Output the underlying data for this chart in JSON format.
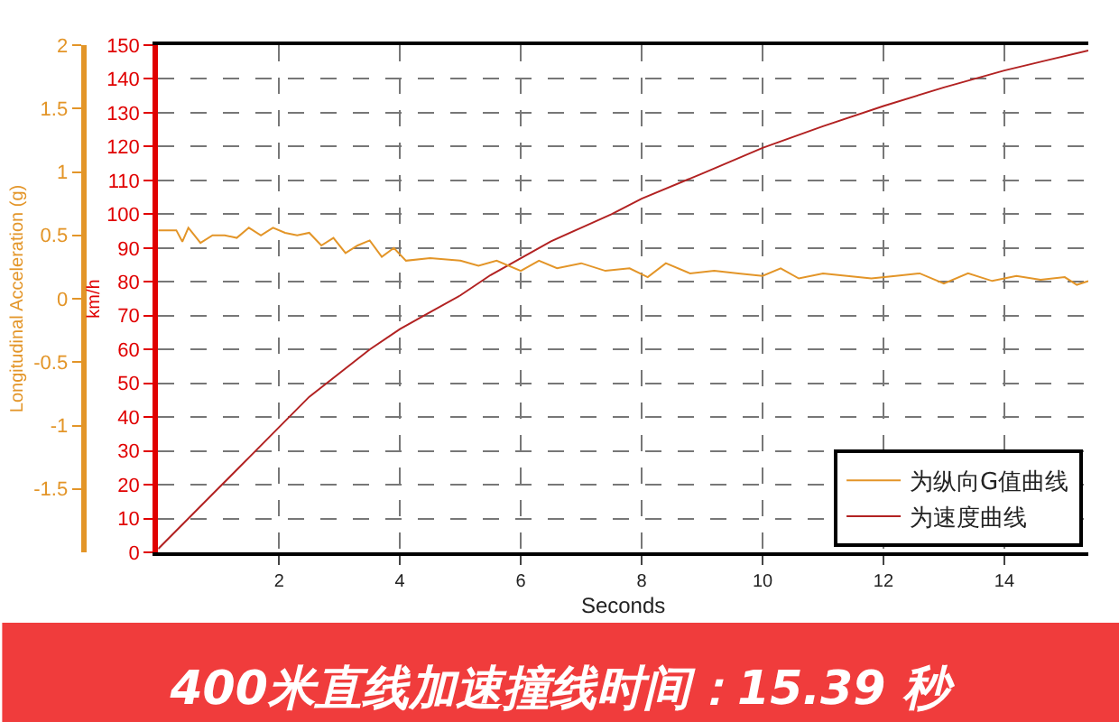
{
  "chart_data": {
    "type": "line",
    "title": "400米直线加速撞线时间：15.39 秒",
    "xlabel": "Seconds",
    "ylabel": "km/h",
    "y2label": "Longitudinal Acceleration (g)",
    "xlim": [
      0,
      15.39
    ],
    "xticks": [
      2,
      4,
      6,
      8,
      10,
      12,
      14
    ],
    "ylim": [
      0,
      150
    ],
    "yticks": [
      0,
      10,
      20,
      30,
      40,
      50,
      60,
      70,
      80,
      90,
      100,
      110,
      120,
      130,
      140,
      150
    ],
    "y2lim": [
      -2,
      2
    ],
    "y2ticks": [
      -1.5,
      -1,
      -0.5,
      0,
      0.5,
      1,
      1.5,
      2
    ],
    "grid": true,
    "legend": "bottom right",
    "line_style": "solid",
    "series": [
      {
        "name": "为纵向G值曲线",
        "color": "#e39528",
        "axis": "y2",
        "x": [
          0,
          0.3,
          0.4,
          0.5,
          0.7,
          0.9,
          1.1,
          1.3,
          1.5,
          1.7,
          1.9,
          2.1,
          2.3,
          2.5,
          2.7,
          2.9,
          3.1,
          3.3,
          3.5,
          3.7,
          3.9,
          4.1,
          4.5,
          5.0,
          5.3,
          5.6,
          6.0,
          6.3,
          6.6,
          7.0,
          7.4,
          7.8,
          8.1,
          8.4,
          8.8,
          9.2,
          9.6,
          10.0,
          10.3,
          10.6,
          11.0,
          11.4,
          11.8,
          12.2,
          12.6,
          13.0,
          13.4,
          13.8,
          14.2,
          14.6,
          15.0,
          15.2,
          15.39
        ],
        "values": [
          0.54,
          0.54,
          0.45,
          0.56,
          0.44,
          0.5,
          0.5,
          0.48,
          0.56,
          0.5,
          0.56,
          0.52,
          0.5,
          0.52,
          0.42,
          0.48,
          0.36,
          0.42,
          0.46,
          0.33,
          0.4,
          0.3,
          0.32,
          0.3,
          0.26,
          0.3,
          0.22,
          0.3,
          0.24,
          0.28,
          0.22,
          0.24,
          0.17,
          0.28,
          0.2,
          0.22,
          0.2,
          0.18,
          0.24,
          0.16,
          0.2,
          0.18,
          0.16,
          0.18,
          0.2,
          0.12,
          0.2,
          0.14,
          0.18,
          0.15,
          0.17,
          0.11,
          0.14
        ]
      },
      {
        "name": "为速度曲线",
        "color": "#b22222",
        "axis": "y",
        "x": [
          0,
          0.5,
          1,
          1.5,
          2,
          2.5,
          3,
          3.5,
          4,
          4.5,
          5,
          5.5,
          6,
          6.5,
          7,
          7.5,
          8,
          9,
          10,
          11,
          12,
          13,
          14,
          14.7,
          15.39
        ],
        "values": [
          1,
          10,
          19,
          28,
          37,
          46,
          53,
          60,
          66,
          71,
          76,
          82,
          87,
          92,
          96,
          100,
          104.6,
          112,
          119.6,
          126,
          132,
          137.5,
          142.5,
          145.5,
          148.4
        ]
      }
    ]
  }
}
